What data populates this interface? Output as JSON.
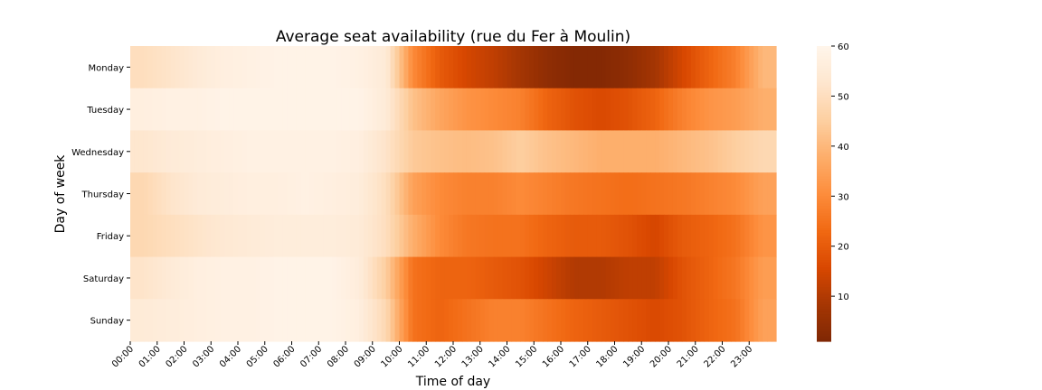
{
  "chart_data": {
    "type": "heatmap",
    "title": "Average seat availability (rue du Fer à Moulin)",
    "xlabel": "Time of day",
    "ylabel": "Day of week",
    "rows": [
      "Monday",
      "Tuesday",
      "Wednesday",
      "Thursday",
      "Friday",
      "Saturday",
      "Sunday"
    ],
    "x_tick_labels": [
      "00:00",
      "01:00",
      "02:00",
      "03:00",
      "04:00",
      "05:00",
      "06:00",
      "07:00",
      "08:00",
      "09:00",
      "10:00",
      "11:00",
      "12:00",
      "13:00",
      "14:00",
      "15:00",
      "16:00",
      "17:00",
      "18:00",
      "19:00",
      "20:00",
      "21:00",
      "22:00",
      "23:00"
    ],
    "x_tick_rotation_deg": -45,
    "values_by_hour": [
      [
        50,
        52,
        55,
        57,
        58,
        59,
        59,
        59,
        58,
        55,
        30,
        20,
        15,
        12,
        8,
        4,
        2,
        2,
        4,
        8,
        15,
        22,
        28,
        40
      ],
      [
        57,
        58,
        58,
        59,
        59,
        59,
        59,
        59,
        59,
        55,
        42,
        36,
        32,
        30,
        28,
        22,
        18,
        16,
        18,
        22,
        28,
        32,
        34,
        38
      ],
      [
        53,
        55,
        56,
        57,
        58,
        58,
        58,
        58,
        57,
        52,
        44,
        42,
        41,
        42,
        45,
        42,
        40,
        38,
        38,
        38,
        40,
        42,
        45,
        48
      ],
      [
        48,
        52,
        55,
        56,
        57,
        57,
        58,
        57,
        56,
        50,
        35,
        30,
        28,
        28,
        30,
        28,
        26,
        25,
        24,
        25,
        26,
        28,
        30,
        35
      ],
      [
        48,
        50,
        52,
        54,
        55,
        56,
        56,
        56,
        55,
        50,
        38,
        30,
        26,
        25,
        25,
        22,
        20,
        20,
        18,
        15,
        20,
        22,
        25,
        32
      ],
      [
        52,
        55,
        57,
        58,
        58,
        59,
        59,
        59,
        56,
        45,
        25,
        22,
        22,
        20,
        18,
        14,
        10,
        10,
        12,
        12,
        18,
        22,
        26,
        34
      ],
      [
        55,
        56,
        57,
        58,
        58,
        59,
        59,
        59,
        57,
        48,
        25,
        22,
        25,
        28,
        28,
        25,
        22,
        20,
        18,
        16,
        18,
        22,
        25,
        35
      ]
    ],
    "color_scale": {
      "name": "Oranges (reversed)",
      "vmin": 1,
      "vmax": 60,
      "ticks": [
        10,
        20,
        30,
        40,
        50,
        60
      ],
      "stops": [
        "#7f2704",
        "#a63603",
        "#d94801",
        "#f16913",
        "#fd8d3c",
        "#fdae6b",
        "#fdd0a2",
        "#fee6ce",
        "#fff5eb"
      ]
    },
    "legend": "colorbar-right"
  }
}
